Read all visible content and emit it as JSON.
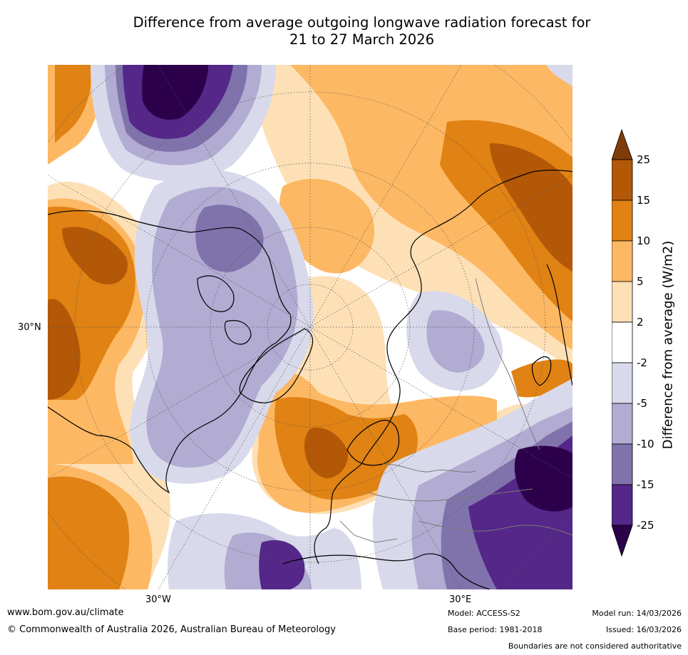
{
  "title": {
    "line1": "Difference from average outgoing longwave radiation forecast for",
    "line2": "21 to 27 March 2026"
  },
  "map": {
    "projection": "north-polar-stereographic",
    "labels": {
      "lat_30n": "30°N",
      "lon_30w": "30°W",
      "lon_30e": "30°E"
    }
  },
  "colorbar": {
    "label": "Difference from average (W/m2)",
    "ticks": [
      "25",
      "15",
      "10",
      "5",
      "2",
      "-2",
      "-5",
      "-10",
      "-15",
      "-25"
    ],
    "colors": {
      "over": "#7f3b08",
      "b15_25": "#b35806",
      "b10_15": "#e08214",
      "b5_10": "#fdb863",
      "b2_5": "#fee0b6",
      "bm2_2": "#ffffff",
      "bm5_m2": "#d8daeb",
      "bm10_m5": "#b2abd2",
      "bm15_m10": "#8073ac",
      "bm25_m15": "#542788",
      "under": "#2d004b"
    }
  },
  "footer": {
    "website": "www.bom.gov.au/climate",
    "copyright": "© Commonwealth of Australia 2026, Australian Bureau of Meteorology",
    "model": "Model: ACCESS-S2",
    "base_period": "Base period: 1981-2018",
    "model_run": "Model run: 14/03/2026",
    "issued": "Issued: 16/03/2026",
    "disclaimer": "Boundaries are not considered authoritative"
  }
}
